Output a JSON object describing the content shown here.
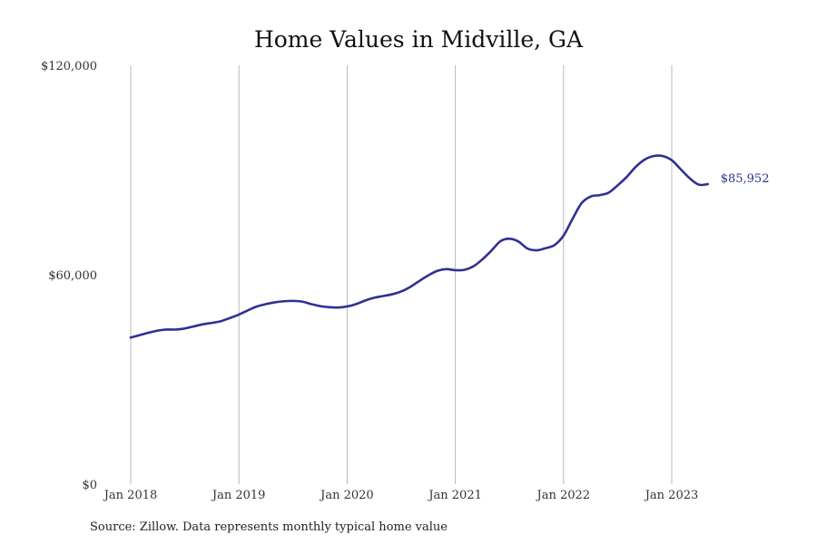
{
  "chart_data": {
    "type": "line",
    "title": "Home Values in Midville, GA",
    "xlabel": "",
    "ylabel": "",
    "ylim": [
      0,
      120000
    ],
    "yticks": [
      {
        "value": 0,
        "label": "$0"
      },
      {
        "value": 60000,
        "label": "$60,000"
      },
      {
        "value": 120000,
        "label": "$120,000"
      }
    ],
    "xticks": [
      {
        "value": "2018-01",
        "label": "Jan 2018"
      },
      {
        "value": "2019-01",
        "label": "Jan 2019"
      },
      {
        "value": "2020-01",
        "label": "Jan 2020"
      },
      {
        "value": "2021-01",
        "label": "Jan 2021"
      },
      {
        "value": "2022-01",
        "label": "Jan 2022"
      },
      {
        "value": "2023-01",
        "label": "Jan 2023"
      }
    ],
    "grid": "vertical",
    "legend": "none",
    "colors": {
      "line": "#2e3192",
      "grid": "#b8b8b8"
    },
    "end_label": "$85,952",
    "series": [
      {
        "x": [
          "2018-01",
          "2018-02",
          "2018-03",
          "2018-04",
          "2018-05",
          "2018-06",
          "2018-07",
          "2018-08",
          "2018-09",
          "2018-10",
          "2018-11",
          "2018-12",
          "2019-01",
          "2019-02",
          "2019-03",
          "2019-04",
          "2019-05",
          "2019-06",
          "2019-07",
          "2019-08",
          "2019-09",
          "2019-10",
          "2019-11",
          "2019-12",
          "2020-01",
          "2020-02",
          "2020-03",
          "2020-04",
          "2020-05",
          "2020-06",
          "2020-07",
          "2020-08",
          "2020-09",
          "2020-10",
          "2020-11",
          "2020-12",
          "2021-01",
          "2021-02",
          "2021-03",
          "2021-04",
          "2021-05",
          "2021-06",
          "2021-07",
          "2021-08",
          "2021-09",
          "2021-10",
          "2021-11",
          "2021-12",
          "2022-01",
          "2022-02",
          "2022-03",
          "2022-04",
          "2022-05",
          "2022-06",
          "2022-07",
          "2022-08",
          "2022-09",
          "2022-10",
          "2022-11",
          "2022-12",
          "2023-01",
          "2023-02",
          "2023-03",
          "2023-04",
          "2023-05"
        ],
        "values": [
          42000,
          42700,
          43400,
          44000,
          44300,
          44300,
          44600,
          45200,
          45800,
          46200,
          46700,
          47600,
          48600,
          49800,
          50900,
          51600,
          52100,
          52400,
          52500,
          52300,
          51600,
          51000,
          50700,
          50600,
          50900,
          51600,
          52600,
          53400,
          53900,
          54400,
          55200,
          56500,
          58200,
          59800,
          61100,
          61600,
          61300,
          61400,
          62400,
          64400,
          66900,
          69600,
          70300,
          69500,
          67500,
          67000,
          67600,
          68500,
          71200,
          76000,
          80500,
          82400,
          82800,
          83500,
          85600,
          88000,
          90900,
          93000,
          94000,
          94000,
          92800,
          90200,
          87600,
          85800,
          85952
        ]
      }
    ]
  },
  "source": "Source: Zillow. Data represents monthly typical home value"
}
